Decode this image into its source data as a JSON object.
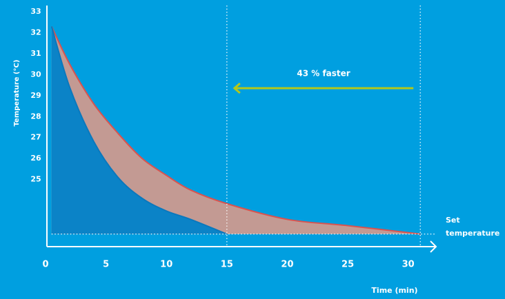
{
  "chart_data": {
    "type": "area",
    "y_label": "Temperature (°C)",
    "x_label": "Time (min)",
    "x": [
      0.5,
      2,
      4,
      6,
      8,
      10,
      12,
      15,
      20,
      25,
      31
    ],
    "series": [
      {
        "color": "#d9534f",
        "fill": "#c39a93",
        "values": [
          32.3,
          30.5,
          28.6,
          27.2,
          26.0,
          25.2,
          24.5,
          23.85,
          23.1,
          22.8,
          22.4
        ]
      },
      {
        "color": "#0a78bd",
        "fill": "#0b83c7",
        "values": [
          32.3,
          29.4,
          26.8,
          25.1,
          24.1,
          23.5,
          23.1,
          22.4,
          null,
          null,
          null
        ]
      }
    ],
    "set_temperature": {
      "value": 22.4,
      "label": "Set temperature"
    },
    "vlines": [
      15,
      31
    ],
    "annotation": "43 % faster",
    "arrow_color": "#b3c81a",
    "xlim": [
      0,
      32.3
    ],
    "ylim": [
      21.8,
      33.3
    ],
    "xticks": [
      0,
      5,
      10,
      15,
      20,
      25,
      30
    ],
    "yticks": [
      25,
      26,
      27,
      28,
      29,
      30,
      31,
      32,
      33
    ]
  }
}
